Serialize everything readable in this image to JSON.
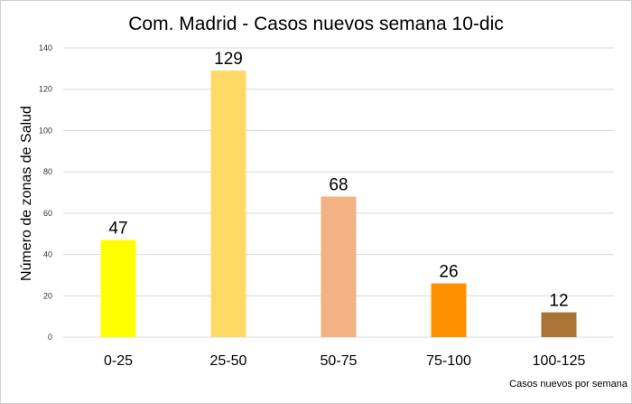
{
  "chart_data": {
    "type": "bar",
    "title": "Com. Madrid -  Casos nuevos semana 10-dic",
    "xlabel": "Casos nuevos por semana",
    "ylabel": "Número de zonas de  Salud",
    "categories": [
      "0-25",
      "25-50",
      "50-75",
      "75-100",
      "100-125"
    ],
    "values": [
      47,
      129,
      68,
      26,
      12
    ],
    "colors": [
      "#ffff00",
      "#ffd966",
      "#f4b183",
      "#ff9100",
      "#a97436"
    ],
    "ylim": [
      0,
      140
    ],
    "yticks": [
      0,
      20,
      40,
      60,
      80,
      100,
      120,
      140
    ],
    "grid": true,
    "legend": "none"
  }
}
